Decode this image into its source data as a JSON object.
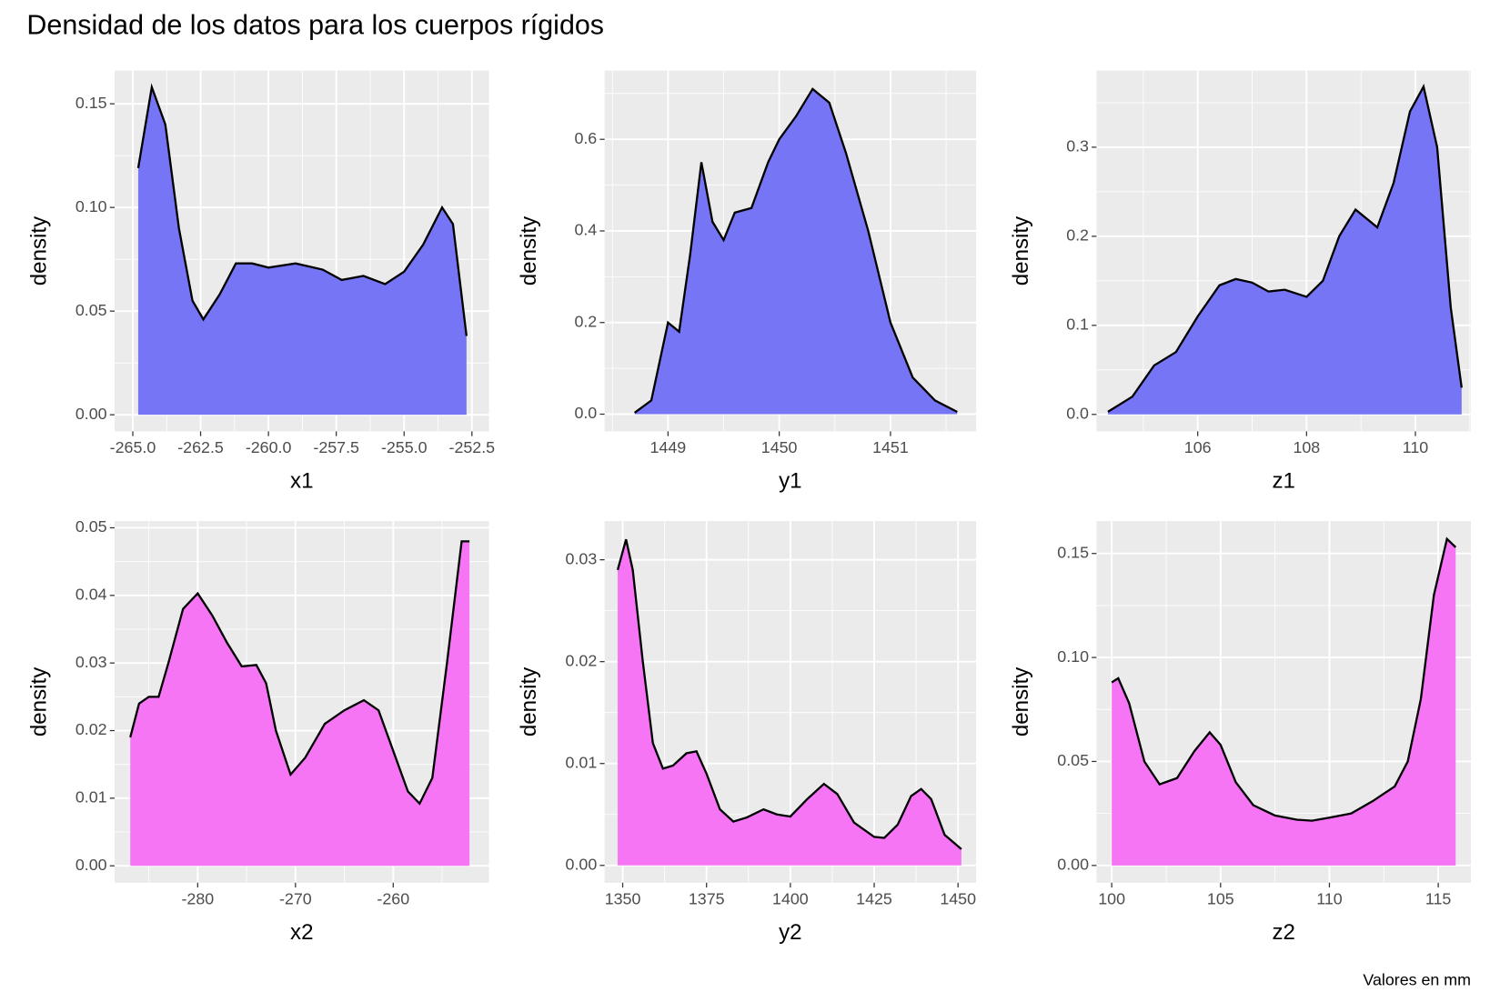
{
  "title": "Densidad de los datos para los cuerpos rígidos",
  "caption": "Valores en mm",
  "chart_data": [
    {
      "type": "area",
      "x_label": "x1",
      "y_label": "density",
      "color": "#000000",
      "fill": "#7575f5",
      "grid": true,
      "x": [
        -264.8,
        -264.3,
        -263.8,
        -263.3,
        -262.8,
        -262.4,
        -261.8,
        -261.2,
        -260.6,
        -260.0,
        -259.0,
        -258.0,
        -257.3,
        -256.5,
        -255.7,
        -255.0,
        -254.3,
        -253.6,
        -253.2,
        -252.7
      ],
      "values": [
        0.119,
        0.158,
        0.14,
        0.09,
        0.055,
        0.046,
        0.058,
        0.073,
        0.073,
        0.071,
        0.073,
        0.07,
        0.065,
        0.067,
        0.063,
        0.069,
        0.082,
        0.1,
        0.092,
        0.038
      ],
      "xlim": [
        -265.67,
        -251.87
      ],
      "ylim": [
        -0.008,
        0.166
      ],
      "xticks": [
        {
          "value": -265,
          "label": "-265.0"
        },
        -262.5,
        {
          "value": -260,
          "label": "-260.0"
        },
        -257.5,
        {
          "value": -255,
          "label": "-255.0"
        },
        -252.5
      ],
      "yticks": [
        {
          "value": 0,
          "label": "0.00"
        },
        0.05,
        {
          "value": 0.1,
          "label": "0.10"
        },
        0.15
      ]
    },
    {
      "type": "area",
      "x_label": "y1",
      "y_label": "density",
      "color": "#000000",
      "fill": "#7575f5",
      "grid": true,
      "x": [
        1448.7,
        1448.85,
        1449.0,
        1449.1,
        1449.2,
        1449.3,
        1449.4,
        1449.5,
        1449.6,
        1449.75,
        1449.9,
        1450.0,
        1450.15,
        1450.3,
        1450.45,
        1450.6,
        1450.8,
        1451.0,
        1451.2,
        1451.4,
        1451.6
      ],
      "values": [
        0.003,
        0.03,
        0.2,
        0.18,
        0.35,
        0.55,
        0.42,
        0.38,
        0.44,
        0.45,
        0.55,
        0.6,
        0.65,
        0.71,
        0.68,
        0.57,
        0.4,
        0.2,
        0.08,
        0.03,
        0.005
      ],
      "xlim": [
        1448.43,
        1451.77
      ],
      "ylim": [
        -0.0375,
        0.75
      ],
      "xticks": [
        1449,
        1450,
        1451
      ],
      "yticks": [
        {
          "value": 0,
          "label": "0.0"
        },
        0.2,
        0.4,
        0.6
      ]
    },
    {
      "type": "area",
      "x_label": "z1",
      "y_label": "density",
      "color": "#000000",
      "fill": "#7575f5",
      "grid": true,
      "x": [
        104.35,
        104.8,
        105.2,
        105.6,
        106.0,
        106.4,
        106.7,
        107.0,
        107.3,
        107.6,
        108.0,
        108.3,
        108.6,
        108.9,
        109.3,
        109.6,
        109.9,
        110.15,
        110.4,
        110.65,
        110.85
      ],
      "values": [
        0.003,
        0.02,
        0.055,
        0.07,
        0.11,
        0.145,
        0.152,
        0.148,
        0.138,
        0.14,
        0.132,
        0.15,
        0.2,
        0.23,
        0.21,
        0.26,
        0.34,
        0.368,
        0.3,
        0.12,
        0.03
      ],
      "xlim": [
        104.14,
        111.02
      ],
      "ylim": [
        -0.019,
        0.386
      ],
      "xticks": [
        106,
        108,
        110
      ],
      "yticks": [
        {
          "value": 0,
          "label": "0.0"
        },
        0.1,
        0.2,
        0.3
      ]
    },
    {
      "type": "area",
      "x_label": "x2",
      "y_label": "density",
      "color": "#000000",
      "fill": "#f575f5",
      "grid": true,
      "x": [
        -286.9,
        -286,
        -285,
        -284,
        -283,
        -281.5,
        -280,
        -278.5,
        -277,
        -275.5,
        -274,
        -273,
        -272,
        -270.5,
        -269,
        -267,
        -265,
        -263,
        -261.5,
        -260,
        -258.5,
        -257.3,
        -256,
        -254.5,
        -253,
        -252.2
      ],
      "values": [
        0.019,
        0.024,
        0.025,
        0.025,
        0.03,
        0.038,
        0.0403,
        0.037,
        0.033,
        0.0295,
        0.0297,
        0.027,
        0.02,
        0.0135,
        0.016,
        0.021,
        0.023,
        0.0245,
        0.023,
        0.017,
        0.011,
        0.0092,
        0.013,
        0.03,
        0.048,
        0.048
      ],
      "xlim": [
        -288.5,
        -250.2
      ],
      "ylim": [
        -0.0025,
        0.051
      ],
      "xticks": [
        -280,
        -270,
        -260
      ],
      "yticks": [
        {
          "value": 0,
          "label": "0.00"
        },
        0.01,
        0.02,
        0.03,
        0.04,
        0.05
      ]
    },
    {
      "type": "area",
      "x_label": "y2",
      "y_label": "density",
      "color": "#000000",
      "fill": "#f575f5",
      "grid": true,
      "x": [
        1348.5,
        1351,
        1353,
        1356,
        1359,
        1362,
        1365,
        1369,
        1372,
        1375,
        1379,
        1383,
        1387,
        1392,
        1396,
        1400,
        1405,
        1410,
        1414,
        1419,
        1425,
        1428,
        1432,
        1436,
        1439,
        1442,
        1446,
        1451
      ],
      "values": [
        0.029,
        0.032,
        0.029,
        0.02,
        0.012,
        0.0095,
        0.0098,
        0.011,
        0.0112,
        0.009,
        0.0055,
        0.0043,
        0.0047,
        0.0055,
        0.005,
        0.0048,
        0.0065,
        0.008,
        0.007,
        0.0042,
        0.0028,
        0.0027,
        0.004,
        0.0068,
        0.0075,
        0.0065,
        0.003,
        0.0016
      ],
      "xlim": [
        1344.6,
        1455.4
      ],
      "ylim": [
        -0.0017,
        0.0338
      ],
      "xticks": [
        1350,
        1375,
        1400,
        1425,
        1450
      ],
      "yticks": [
        {
          "value": 0,
          "label": "0.00"
        },
        0.01,
        0.02,
        0.03
      ]
    },
    {
      "type": "area",
      "x_label": "z2",
      "y_label": "density",
      "color": "#000000",
      "fill": "#f575f5",
      "grid": true,
      "x": [
        100,
        100.3,
        100.8,
        101.5,
        102.2,
        103,
        103.8,
        104.5,
        105,
        105.7,
        106.5,
        107.5,
        108.5,
        109.2,
        110,
        111,
        112,
        113,
        113.6,
        114.2,
        114.8,
        115.4,
        115.8
      ],
      "values": [
        0.088,
        0.09,
        0.078,
        0.05,
        0.039,
        0.042,
        0.055,
        0.064,
        0.058,
        0.04,
        0.029,
        0.024,
        0.022,
        0.0215,
        0.023,
        0.025,
        0.031,
        0.038,
        0.05,
        0.08,
        0.13,
        0.157,
        0.153
      ],
      "xlim": [
        99.3,
        116.5
      ],
      "ylim": [
        -0.0083,
        0.1656
      ],
      "xticks": [
        100,
        105,
        110,
        115
      ],
      "yticks": [
        {
          "value": 0,
          "label": "0.00"
        },
        0.05,
        {
          "value": 0.1,
          "label": "0.10"
        },
        0.15
      ]
    }
  ]
}
